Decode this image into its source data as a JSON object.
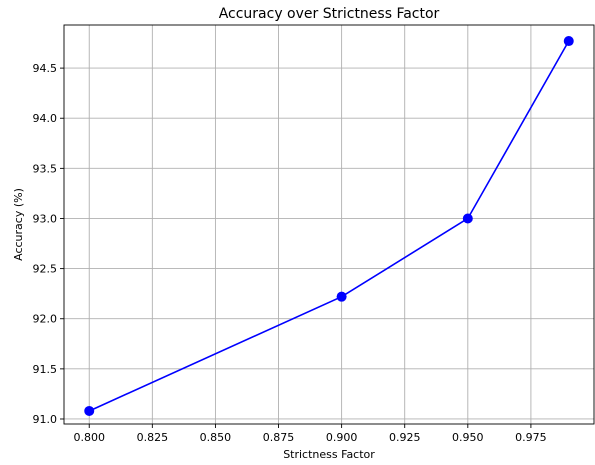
{
  "chart_data": {
    "type": "line",
    "title": "Accuracy over Strictness Factor",
    "xlabel": "Strictness Factor",
    "ylabel": "Accuracy (%)",
    "xlim": [
      0.79,
      1.0
    ],
    "ylim": [
      90.95,
      94.93
    ],
    "xticks": [
      0.8,
      0.825,
      0.85,
      0.875,
      0.9,
      0.925,
      0.95,
      0.975
    ],
    "xtick_labels": [
      "0.800",
      "0.825",
      "0.850",
      "0.875",
      "0.900",
      "0.925",
      "0.950",
      "0.975"
    ],
    "yticks": [
      91.0,
      91.5,
      92.0,
      92.5,
      93.0,
      93.5,
      94.0,
      94.5
    ],
    "ytick_labels": [
      "91.0",
      "91.5",
      "92.0",
      "92.5",
      "93.0",
      "93.5",
      "94.0",
      "94.5"
    ],
    "grid": true,
    "series": [
      {
        "color": "#0000ff",
        "marker": "circle",
        "x": [
          0.8,
          0.9,
          0.95,
          0.99
        ],
        "y": [
          91.08,
          92.22,
          93.0,
          94.77
        ]
      }
    ]
  }
}
